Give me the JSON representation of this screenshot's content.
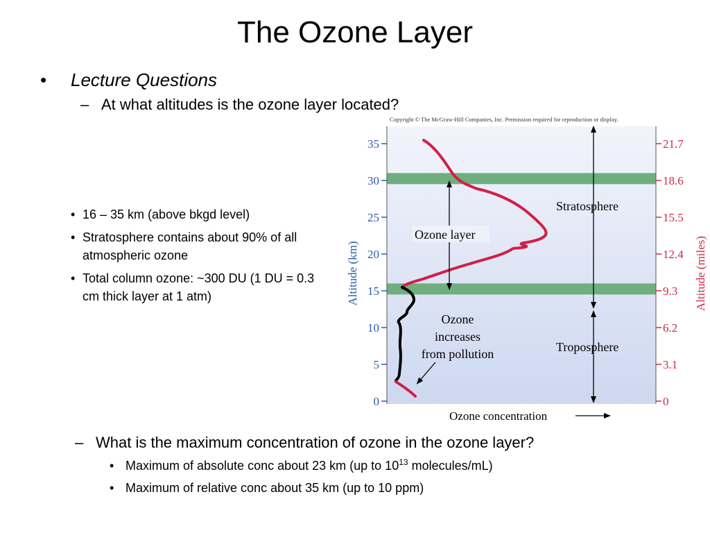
{
  "title": "The Ozone Layer",
  "bullet_main": {
    "marker": "•",
    "text": "Lecture Questions"
  },
  "question1": {
    "marker": "–",
    "text": "At what altitudes is the ozone layer located?"
  },
  "answers1": [
    "16 – 35 km (above bkgd level)",
    "Stratosphere contains about 90% of all atmospheric ozone",
    "Total column ozone: ~300 DU (1 DU = 0.3 cm thick layer at 1 atm)"
  ],
  "question2": {
    "marker": "–",
    "text": "What is the maximum concentration of ozone in the ozone layer?"
  },
  "answers2": [
    {
      "before": "Maximum of absolute conc about 23 km (up to 10",
      "sup": "13",
      "after": " molecules/mL)"
    },
    {
      "before": "Maximum of relative conc about 35 km (up to 10 ppm)",
      "sup": "",
      "after": ""
    }
  ],
  "bullet_dot": "•",
  "diagram": {
    "copyright": "Copyright © The McGraw-Hill Companies, Inc. Permission required for reproduction or display.",
    "left_axis_label": "Altitude (km)",
    "right_axis_label": "Altitude (miles)",
    "x_axis_label": "Ozone concentration",
    "km_ticks": [
      0,
      5,
      10,
      15,
      20,
      25,
      30,
      35
    ],
    "mile_ticks": [
      "0",
      "3.1",
      "6.2",
      "9.3",
      "12.4",
      "15.5",
      "18.6",
      "21.7"
    ],
    "tropopause_band_km": [
      14.5,
      16
    ],
    "ozone_top_band_km": [
      29.5,
      31
    ],
    "labels": {
      "ozone_layer": "Ozone layer",
      "stratosphere": "Stratosphere",
      "troposphere": "Troposphere",
      "ozone_increase": [
        "Ozone",
        "increases",
        "from pollution"
      ]
    },
    "colors": {
      "left_axis": "#2e5aa8",
      "right_axis": "#cc2b4a",
      "ozone_curve_strat": "#d21f46",
      "ozone_curve_trop": "#000000",
      "bands": "#6fae7e",
      "background_top": "#f2f4fb",
      "background_bottom": "#cdd8f0"
    }
  }
}
